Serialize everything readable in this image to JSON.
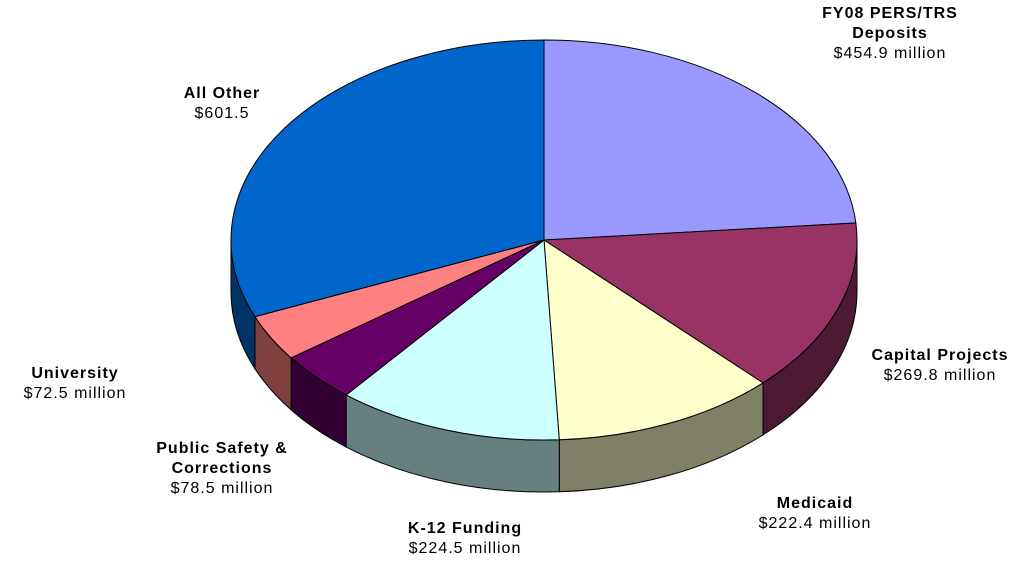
{
  "chart_data": {
    "type": "pie",
    "categories": [
      "FY08 PERS/TRS Deposits",
      "Capital Projects",
      "Medicaid",
      "K-12 Funding",
      "Public Safety & Corrections",
      "University",
      "All Other"
    ],
    "values": [
      454.9,
      269.8,
      222.4,
      224.5,
      78.5,
      72.5,
      601.5
    ],
    "value_labels": [
      "$454.9 million",
      "$269.8 million",
      "$222.4 million",
      "$224.5 million",
      "$78.5 million",
      "$72.5 million",
      "$601.5"
    ],
    "colors": [
      "#9999ff",
      "#993366",
      "#ffffcc",
      "#ccffff",
      "#660066",
      "#ff8080",
      "#0066cc"
    ]
  }
}
